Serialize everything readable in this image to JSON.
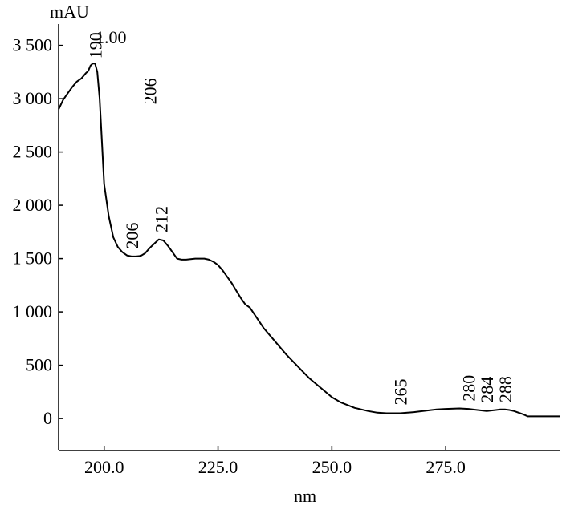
{
  "chart_data": {
    "type": "line",
    "title": "",
    "xlabel": "nm",
    "ylabel": "mAU",
    "xlim": [
      190,
      300
    ],
    "ylim": [
      -300,
      3700
    ],
    "x_ticks": [
      200,
      225,
      250,
      275
    ],
    "x_tick_labels": [
      "200.0",
      "225.0",
      "250.0",
      "275.0"
    ],
    "y_ticks": [
      0,
      500,
      1000,
      1500,
      2000,
      2500,
      3000,
      3500
    ],
    "y_tick_labels": [
      "0",
      "500",
      "1 000",
      "1 500",
      "2 000",
      "2 500",
      "3 000",
      "3 500"
    ],
    "grid": false,
    "series": [
      {
        "x": [
          190,
          191,
          192,
          193,
          194,
          195,
          196,
          196.5,
          197,
          197.5,
          198,
          198.5,
          199,
          199.5,
          200,
          201,
          202,
          203,
          204,
          205,
          206,
          207,
          208,
          209,
          210,
          211,
          212,
          213,
          214,
          215,
          216,
          217,
          218,
          219,
          220,
          221,
          222,
          223,
          224,
          225,
          226,
          227,
          228,
          229,
          230,
          231,
          232,
          235,
          240,
          245,
          250,
          252,
          255,
          258,
          260,
          262,
          265,
          268,
          270,
          273,
          275,
          278,
          280,
          282,
          284,
          285,
          286,
          287,
          288,
          289,
          290,
          292,
          293,
          295,
          300
        ],
        "y": [
          2900,
          2990,
          3050,
          3110,
          3160,
          3190,
          3240,
          3260,
          3310,
          3330,
          3330,
          3250,
          3000,
          2600,
          2200,
          1900,
          1700,
          1610,
          1560,
          1530,
          1520,
          1520,
          1525,
          1550,
          1600,
          1640,
          1680,
          1670,
          1620,
          1560,
          1500,
          1490,
          1490,
          1495,
          1500,
          1500,
          1500,
          1490,
          1470,
          1440,
          1390,
          1330,
          1270,
          1200,
          1130,
          1070,
          1040,
          850,
          600,
          380,
          200,
          150,
          100,
          70,
          55,
          50,
          50,
          60,
          70,
          85,
          90,
          95,
          90,
          80,
          70,
          75,
          80,
          85,
          85,
          80,
          70,
          40,
          20,
          20,
          20
        ]
      }
    ],
    "annotations": [
      {
        "text": "190",
        "x": 198,
        "y": 3330,
        "rotate": true
      },
      {
        "text": "1.00",
        "x": 201.5,
        "y": 3520,
        "rotate": false
      },
      {
        "text": "206",
        "x": 210,
        "y": 2900,
        "rotate": true
      },
      {
        "text": "206",
        "x": 206,
        "y": 1545,
        "rotate": true
      },
      {
        "text": "212",
        "x": 212.5,
        "y": 1700,
        "rotate": true
      },
      {
        "text": "265",
        "x": 265,
        "y": 80,
        "rotate": true
      },
      {
        "text": "280",
        "x": 280,
        "y": 115,
        "rotate": true
      },
      {
        "text": "284",
        "x": 284,
        "y": 100,
        "rotate": true
      },
      {
        "text": "288",
        "x": 288,
        "y": 105,
        "rotate": true
      }
    ]
  }
}
